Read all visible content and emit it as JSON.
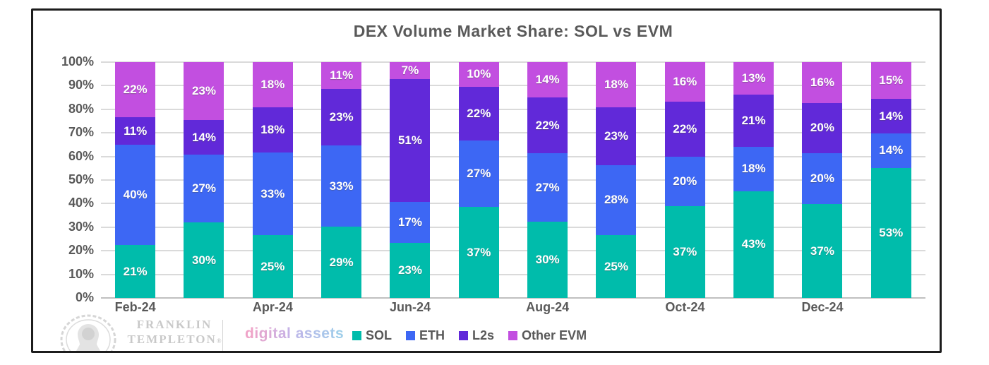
{
  "title": "DEX Volume Market Share: SOL vs EVM",
  "chart_data": {
    "type": "bar",
    "stacked": true,
    "percent_stacked": true,
    "title": "DEX Volume Market Share: SOL vs EVM",
    "xlabel": "",
    "ylabel": "",
    "ylim": [
      0,
      100
    ],
    "grid": true,
    "legend_position": "bottom",
    "y_ticks": [
      "0%",
      "10%",
      "20%",
      "30%",
      "40%",
      "50%",
      "60%",
      "70%",
      "80%",
      "90%",
      "100%"
    ],
    "categories": [
      "Feb-24",
      "",
      "Apr-24",
      "",
      "Jun-24",
      "",
      "Aug-24",
      "",
      "Oct-24",
      "",
      "Dec-24",
      ""
    ],
    "value_suffix": "%",
    "series": [
      {
        "name": "SOL",
        "color": "#00bcab",
        "values": [
          21,
          30,
          25,
          29,
          23,
          37,
          30,
          25,
          37,
          43,
          37,
          53
        ]
      },
      {
        "name": "ETH",
        "color": "#3d67f4",
        "values": [
          40,
          27,
          33,
          33,
          17,
          27,
          27,
          28,
          20,
          18,
          20,
          14
        ]
      },
      {
        "name": "L2s",
        "color": "#6129d9",
        "values": [
          11,
          14,
          18,
          23,
          51,
          22,
          22,
          23,
          22,
          21,
          20,
          14
        ]
      },
      {
        "name": "Other EVM",
        "color": "#c24fe0",
        "values": [
          22,
          23,
          18,
          11,
          7,
          10,
          14,
          18,
          16,
          13,
          16,
          15
        ]
      }
    ]
  },
  "branding": {
    "logo": "franklin-templeton-portrait-icon",
    "line1": "FRANKLIN",
    "line2": "TEMPLETON",
    "trademark": "®",
    "sub_brand": "digital assets",
    "sub_brand_gradient": [
      "#efa3c8",
      "#c3b3e9",
      "#9fceea"
    ]
  }
}
